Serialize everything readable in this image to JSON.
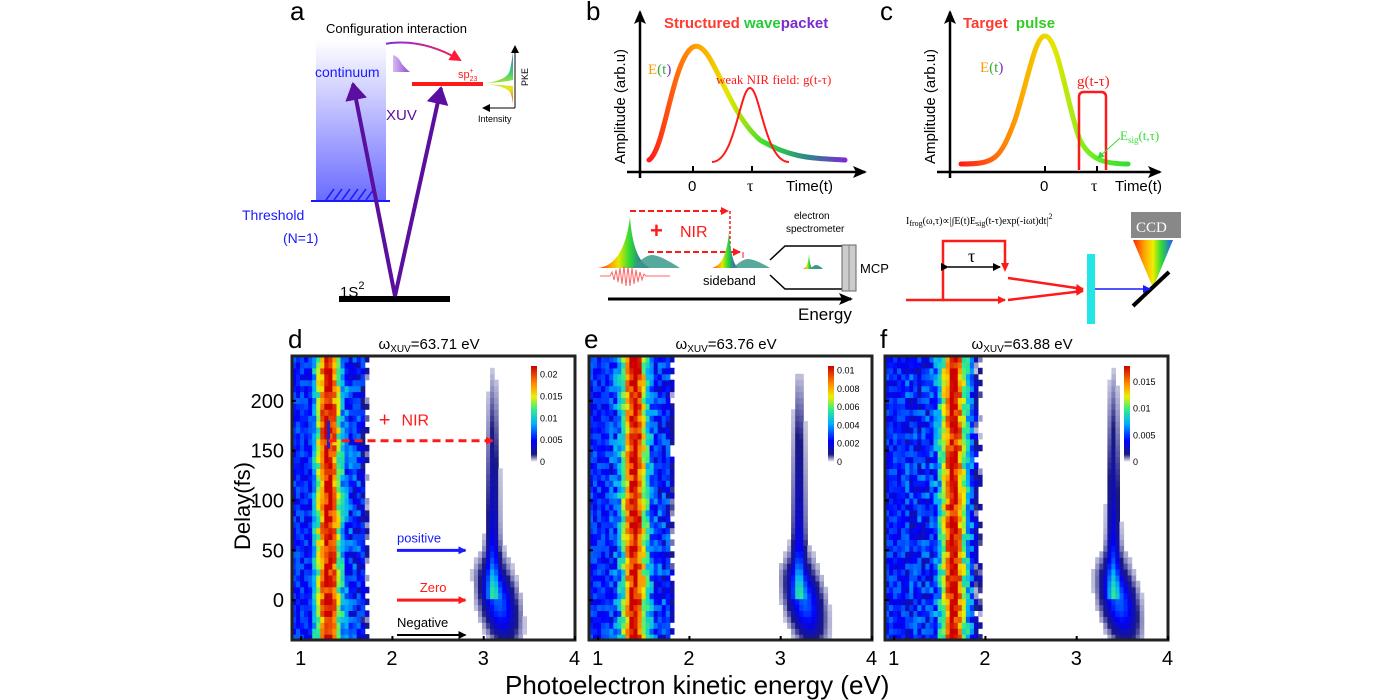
{
  "panel_a": {
    "letter": "a",
    "title": "Configuration interaction",
    "continuum_label": "continuum",
    "state_label": "sp",
    "state_sub": "23",
    "state_sup": "+",
    "xuv_label": "XUV",
    "threshold_label": "Threshold",
    "threshold_n": "(N=1)",
    "ground_label": "1S",
    "ground_sup": "2",
    "pke_label": "PKE",
    "intensity_label": "Intensity",
    "colors": {
      "continuum": "#1a1aff",
      "state": "#ff1a1a",
      "arrow": "#5b0f9e",
      "ground": "#000000"
    }
  },
  "panel_b": {
    "letter": "b",
    "title_parts": [
      {
        "text": "Structured ",
        "color": "#ff3b2f"
      },
      {
        "text": "wave",
        "color": "#22cc33"
      },
      {
        "text": "packet",
        "color": "#7a2ccf"
      }
    ],
    "ylabel": "Amplitude (arb.u)",
    "xlabel": "Time(t)",
    "field_label": "E(t)",
    "nir_label": "weak NIR field: g(t-τ)",
    "tick_zero": "0",
    "tick_tau": "τ",
    "nir_plus": "+",
    "nir_text": "NIR",
    "sideband_label": "sideband",
    "spectrometer_label_1": "electron",
    "spectrometer_label_2": "spectrometer",
    "mcp_label": "MCP",
    "energy_label": "Energy"
  },
  "panel_c": {
    "letter": "c",
    "title_parts": [
      {
        "text": "Target ",
        "color": "#ff3b2f"
      },
      {
        "text": "pulse",
        "color": "#33cc22"
      }
    ],
    "ylabel": "Amplitude (arb.u)",
    "xlabel": "Time(t)",
    "field_label": "E(t)",
    "gate_label": "g(t-τ)",
    "signal_label": "E",
    "signal_sub": "sig",
    "signal_args": "(t,τ)",
    "tick_zero": "0",
    "tick_tau": "τ",
    "frog_formula": "I",
    "frog_sub": "frog",
    "frog_body": "(ω,τ)∝|∫E(t)E",
    "frog_sub2": "sig",
    "frog_body2": "(t-τ)exp(-iωt)dt|",
    "frog_sup": "2",
    "delay_label": "τ",
    "ccd_label": "CCD"
  },
  "shared": {
    "ylabel": "Delay(fs)",
    "xlabel": "Photoelectron kinetic energy (eV)"
  },
  "chart_data": [
    {
      "type": "heatmap",
      "panel": "d",
      "title": "ω_XUV=63.71 eV",
      "title_main": "ω",
      "title_sub": "XUV",
      "title_rest": "=63.71 eV",
      "xlabel": "Photoelectron kinetic energy (eV)",
      "ylabel": "Delay(fs)",
      "xlim": [
        0.9,
        4.0
      ],
      "ylim": [
        -40,
        245
      ],
      "xticks": [
        "1",
        "2",
        "3",
        "4"
      ],
      "yticks": [
        "0",
        "50",
        "100",
        "150",
        "200"
      ],
      "colorbar": {
        "range": [
          0,
          0.022
        ],
        "ticks": [
          "0.02",
          "0.015",
          "0.01",
          "0.005",
          "0"
        ],
        "tick_values": [
          0.02,
          0.015,
          0.01,
          0.005,
          0
        ]
      },
      "features": {
        "band_center_ev": 1.3,
        "band_edge_ev": 1.65,
        "sideband_center_ev": 3.1,
        "sideband_peak_delay_fs": 0
      },
      "annotations": [
        {
          "text": "+",
          "color": "#ff1a1a"
        },
        {
          "text": "NIR",
          "color": "#ff1a1a",
          "arrow_delay_fs": 160,
          "from_ev": 1.3,
          "to_ev": 3.1
        },
        {
          "text": "positive",
          "color": "#1a1aff",
          "delay_fs": 50
        },
        {
          "text": "Zero",
          "color": "#ff1a1a",
          "delay_fs": 0
        },
        {
          "text": "Negative",
          "color": "#000000",
          "delay_fs": -35
        }
      ]
    },
    {
      "type": "heatmap",
      "panel": "e",
      "title": "ω_XUV=63.76 eV",
      "title_main": "ω",
      "title_sub": "XUV",
      "title_rest": "=63.76 eV",
      "xlim": [
        0.9,
        4.0
      ],
      "ylim": [
        -40,
        245
      ],
      "xticks": [
        "1",
        "2",
        "3",
        "4"
      ],
      "colorbar": {
        "range": [
          0,
          0.0105
        ],
        "ticks": [
          "0.01",
          "0.008",
          "0.006",
          "0.004",
          "0.002",
          "0"
        ],
        "tick_values": [
          0.01,
          0.008,
          0.006,
          0.004,
          0.002,
          0
        ]
      },
      "features": {
        "band_center_ev": 1.4,
        "band_edge_ev": 1.75,
        "sideband_center_ev": 3.2,
        "sideband_peak_delay_fs": 0
      }
    },
    {
      "type": "heatmap",
      "panel": "f",
      "title": "ω_XUV=63.88 eV",
      "title_main": "ω",
      "title_sub": "XUV",
      "title_rest": "=63.88 eV",
      "xlim": [
        0.9,
        4.0
      ],
      "ylim": [
        -40,
        245
      ],
      "xticks": [
        "1",
        "2",
        "3",
        "4"
      ],
      "colorbar": {
        "range": [
          0,
          0.018
        ],
        "ticks": [
          "0.015",
          "0.01",
          "0.005",
          "0"
        ],
        "tick_values": [
          0.015,
          0.01,
          0.005,
          0
        ]
      },
      "features": {
        "band_center_ev": 1.65,
        "band_edge_ev": 1.85,
        "sideband_center_ev": 3.4,
        "sideband_peak_delay_fs": 0
      }
    }
  ]
}
